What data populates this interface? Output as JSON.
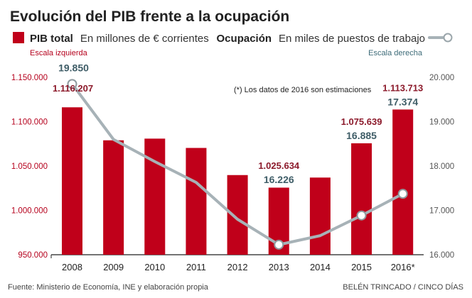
{
  "chart_data": {
    "type": "bar",
    "title": "Evolución del PIB frente a la ocupación",
    "categories": [
      "2008",
      "2009",
      "2010",
      "2011",
      "2012",
      "2013",
      "2014",
      "2015",
      "2016*"
    ],
    "series": [
      {
        "name": "PIB total",
        "unit_label": "En millones de € corrientes",
        "axis_label": "Escala izquierda",
        "chart_type": "bar",
        "color": "#c0001a",
        "values": [
          1116207,
          1079000,
          1080900,
          1070400,
          1039800,
          1025634,
          1037000,
          1075639,
          1113713
        ],
        "labels": [
          {
            "index": 0,
            "text": "1.116.207"
          },
          {
            "index": 5,
            "text": "1.025.634"
          },
          {
            "index": 7,
            "text": "1.075.639"
          },
          {
            "index": 8,
            "text": "1.113.713"
          }
        ]
      },
      {
        "name": "Ocupación",
        "unit_label": "En miles de puestos de trabajo",
        "axis_label": "Escala derecha",
        "chart_type": "line",
        "color": "#a7b2b7",
        "values": [
          19850,
          18600,
          18100,
          17630,
          16800,
          16226,
          16430,
          16885,
          17374
        ],
        "labels": [
          {
            "index": 0,
            "text": "19.850"
          },
          {
            "index": 5,
            "text": "16.226"
          },
          {
            "index": 7,
            "text": "16.885"
          },
          {
            "index": 8,
            "text": "17.374"
          }
        ],
        "markers_at": [
          0,
          5,
          7,
          8
        ]
      }
    ],
    "y_left": {
      "min": 950000,
      "max": 1150000,
      "ticks": [
        {
          "value": 950000,
          "label": "950.000"
        },
        {
          "value": 1000000,
          "label": "1.000.000"
        },
        {
          "value": 1050000,
          "label": "1.050.000"
        },
        {
          "value": 1100000,
          "label": "1.100.000"
        },
        {
          "value": 1150000,
          "label": "1.150.000"
        }
      ]
    },
    "y_right": {
      "min": 16000,
      "max": 20000,
      "ticks": [
        {
          "value": 16000,
          "label": "16.000"
        },
        {
          "value": 17000,
          "label": "17.000"
        },
        {
          "value": 18000,
          "label": "18.000"
        },
        {
          "value": 19000,
          "label": "19.000"
        },
        {
          "value": 20000,
          "label": "20.000"
        }
      ]
    },
    "grid": false,
    "legend": "top",
    "annotations": [
      "(*) Los datos de 2016 son estimaciones"
    ]
  },
  "footer": {
    "source": "Fuente: Ministerio de Economía, INE y elaboración propia",
    "credit": "BELÉN TRINCADO / CINCO DÍAS"
  },
  "colors": {
    "bar": "#c0001a",
    "line": "#a7b2b7",
    "axis": "#222222"
  }
}
